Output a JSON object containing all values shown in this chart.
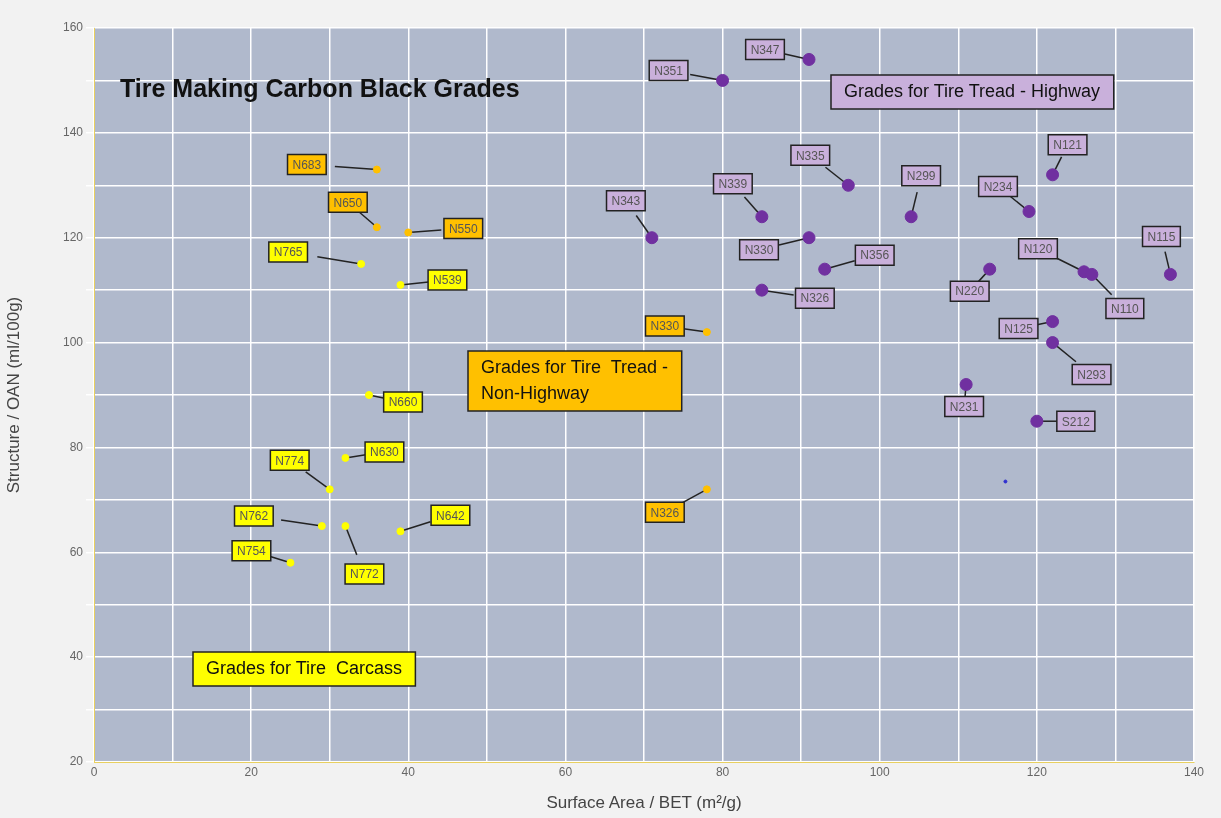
{
  "chart_data": {
    "type": "scatter",
    "title": "Tire Making Carbon Black Grades",
    "xlabel": "Surface Area / BET (m²/g)",
    "ylabel": "Structure / OAN (ml/100g)",
    "xlim": [
      0,
      140
    ],
    "xticks": [
      0,
      {
        "value": 10,
        "label": null
      },
      20,
      {
        "value": 30,
        "label": null
      },
      40,
      {
        "value": 50,
        "label": null
      },
      60,
      {
        "value": 70,
        "label": null
      },
      80,
      {
        "value": 90,
        "label": null
      },
      100,
      {
        "value": 110,
        "label": null
      },
      120,
      {
        "value": 130,
        "label": null
      },
      140
    ],
    "ylim": [
      20,
      160
    ],
    "yticks": [
      20,
      {
        "value": 30,
        "label": null
      },
      40,
      {
        "value": 50,
        "label": null
      },
      60,
      {
        "value": 70,
        "label": null
      },
      80,
      {
        "value": 90,
        "label": null
      },
      100,
      {
        "value": 110,
        "label": null
      },
      120,
      {
        "value": 130,
        "label": null
      },
      140,
      {
        "value": 150,
        "label": null
      },
      160
    ],
    "grid": true,
    "marker": "circle",
    "series": [
      {
        "name": "Grades for Tire  Carcass",
        "color": "#ffff00",
        "x": [
          34,
          39,
          35,
          32,
          30,
          29,
          32,
          39,
          25
        ],
        "values": [
          115,
          111,
          90,
          78,
          72,
          65,
          65,
          64,
          58
        ],
        "value_labels": [
          "N765",
          "N539",
          "N660",
          "N630",
          "N774",
          "N762",
          "N772",
          "N642",
          "N754"
        ]
      },
      {
        "name": "Grades for Tire  Tread - Non-Highway",
        "color": "#ffc000",
        "x": [
          36,
          36,
          40,
          78,
          78
        ],
        "values": [
          133,
          122,
          121,
          102,
          72
        ],
        "value_labels": [
          "N683",
          "N650",
          "N550",
          "N330",
          "N326"
        ]
      },
      {
        "name": "Grades for Tire Tread - Highway",
        "color": "#7030a0",
        "x": [
          91,
          80,
          96,
          85,
          71,
          91,
          93,
          85,
          104,
          122,
          119,
          114,
          126,
          127,
          137,
          122,
          122,
          111,
          120
        ],
        "values": [
          154,
          150,
          130,
          124,
          120,
          120,
          114,
          110,
          124,
          132,
          125,
          114,
          113.5,
          113,
          113,
          104,
          100,
          92,
          85
        ],
        "value_labels": [
          "N347",
          "N351",
          "N335",
          "N339",
          "N343",
          "N330",
          "N356",
          "N326",
          "N299",
          "N121",
          "N234",
          "N220",
          "N120",
          "N110",
          "N115",
          "N125",
          "N293",
          "N231",
          "S212"
        ]
      },
      {
        "color": "#3030d0",
        "x": [
          116
        ],
        "values": [
          73.5
        ],
        "value_labels": [
          null
        ]
      }
    ]
  }
}
